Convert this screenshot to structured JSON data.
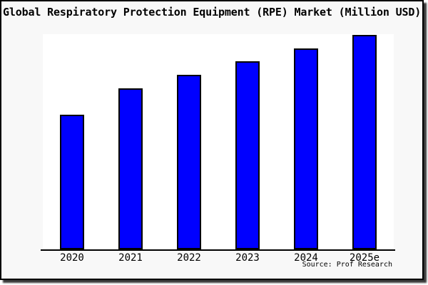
{
  "chart_data": {
    "type": "bar",
    "title": "Global Respiratory Protection Equipment (RPE) Market (Million USD)",
    "categories": [
      "2020",
      "2021",
      "2022",
      "2023",
      "2024",
      "2025e"
    ],
    "values": [
      62.8,
      75.1,
      81.4,
      87.7,
      93.7,
      100
    ],
    "values_unit": "percent of tallest bar (y-axis scale not labeled in chart)",
    "xlabel": "",
    "ylabel": "",
    "ylim": [
      0,
      100
    ],
    "grid": false,
    "legend": false,
    "source": "Source: Prof Research"
  },
  "colors": {
    "bar_fill": "#0000ff",
    "bar_border": "#000000",
    "plot_background": "#ffffff",
    "panel_background": "#f8f8f8",
    "panel_border": "#000000",
    "text": "#000000"
  }
}
